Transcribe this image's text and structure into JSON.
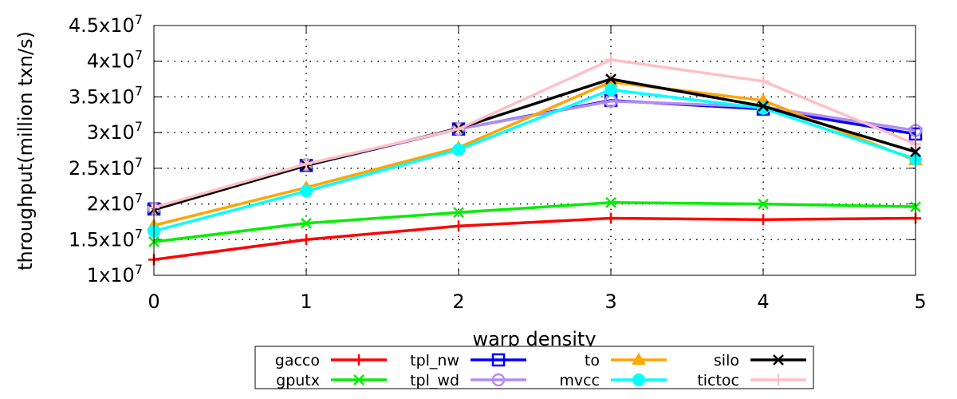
{
  "chart_data": {
    "type": "line",
    "xlabel": "warp density",
    "ylabel": "throughput(million txn/s)",
    "x": [
      0,
      1,
      2,
      3,
      4,
      5
    ],
    "xlim": [
      0,
      5
    ],
    "ylim": [
      10000000,
      45000000
    ],
    "y_ticks": [
      {
        "value": 10000000,
        "mant": "1x10",
        "exp": "7"
      },
      {
        "value": 15000000,
        "mant": "1.5x10",
        "exp": "7"
      },
      {
        "value": 20000000,
        "mant": "2x10",
        "exp": "7"
      },
      {
        "value": 25000000,
        "mant": "2.5x10",
        "exp": "7"
      },
      {
        "value": 30000000,
        "mant": "3x10",
        "exp": "7"
      },
      {
        "value": 35000000,
        "mant": "3.5x10",
        "exp": "7"
      },
      {
        "value": 40000000,
        "mant": "4x10",
        "exp": "7"
      },
      {
        "value": 45000000,
        "mant": "4.5x10",
        "exp": "7"
      }
    ],
    "x_ticks": [
      "0",
      "1",
      "2",
      "3",
      "4",
      "5"
    ],
    "grid": true,
    "legend_position": "bottom",
    "series": [
      {
        "name": "gacco",
        "color": "#ff0000",
        "marker": "plus",
        "values": [
          12200000,
          15000000,
          16900000,
          18000000,
          17800000,
          18000000
        ]
      },
      {
        "name": "gputx",
        "color": "#00ee00",
        "marker": "cross",
        "values": [
          14700000,
          17300000,
          18800000,
          20200000,
          20000000,
          19600000
        ]
      },
      {
        "name": "tpl_nw",
        "color": "#0000ff",
        "marker": "square",
        "values": [
          19300000,
          25400000,
          30500000,
          34500000,
          33300000,
          29800000
        ]
      },
      {
        "name": "tpl_wd",
        "color": "#b48cf0",
        "marker": "circle-open",
        "values": [
          19300000,
          25500000,
          30500000,
          34400000,
          33600000,
          30300000
        ]
      },
      {
        "name": "to",
        "color": "#ffa500",
        "marker": "triangle",
        "values": [
          17000000,
          22300000,
          27900000,
          37100000,
          34500000,
          26100000
        ]
      },
      {
        "name": "mvcc",
        "color": "#00ffff",
        "marker": "circle-filled",
        "values": [
          16200000,
          21800000,
          27600000,
          36000000,
          33400000,
          26300000
        ]
      },
      {
        "name": "silo",
        "color": "#000000",
        "marker": "cross",
        "values": [
          19200000,
          25400000,
          30600000,
          37500000,
          33700000,
          27300000
        ]
      },
      {
        "name": "tictoc",
        "color": "#ffbfc4",
        "marker": "plus",
        "values": [
          19500000,
          25600000,
          30500000,
          40200000,
          37200000,
          28400000
        ]
      }
    ]
  }
}
